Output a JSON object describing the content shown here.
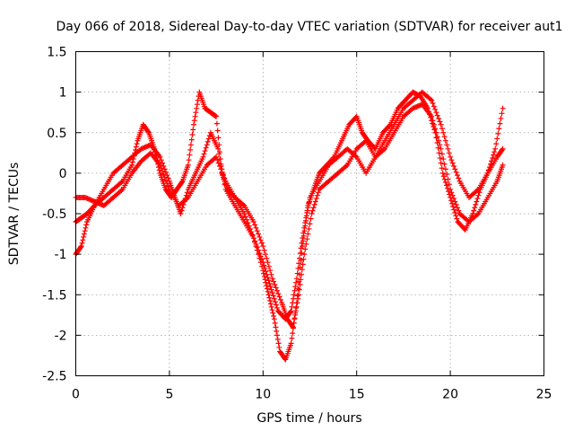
{
  "chart_data": {
    "type": "scatter",
    "title": "Day 066 of 2018, Sidereal Day-to-day VTEC variation (SDTVAR) for receiver aut1",
    "xlabel": "GPS time / hours",
    "ylabel": "SDTVAR / TECUs",
    "xlim": [
      0,
      25
    ],
    "ylim": [
      -2.5,
      1.5
    ],
    "xticks": [
      0,
      5,
      10,
      15,
      20,
      25
    ],
    "yticks": [
      -2.5,
      -2,
      -1.5,
      -1,
      -0.5,
      0,
      0.5,
      1,
      1.5
    ],
    "xtick_labels": [
      "0",
      "5",
      "10",
      "15",
      "20",
      "25"
    ],
    "ytick_labels": [
      "-2.5",
      "-2",
      "-1.5",
      "-1",
      "-0.5",
      "0",
      "0.5",
      "1",
      "1.5"
    ],
    "grid": true,
    "marker": "plus",
    "color": "#ff0000",
    "series": [
      {
        "x": [
          0.0,
          0.3,
          0.6,
          1.0,
          1.5,
          2.0,
          2.5,
          3.0,
          3.3,
          3.6,
          3.9,
          4.2,
          4.5,
          4.8,
          5.1,
          5.4,
          5.7,
          6.0,
          6.3,
          6.6,
          6.9,
          7.2,
          7.5,
          7.8,
          8.1,
          8.5,
          9.0,
          9.5,
          10.0,
          10.3,
          10.6,
          10.9,
          11.2,
          11.5,
          11.8,
          12.1,
          12.4,
          12.7,
          13.0,
          13.4,
          13.8,
          14.2,
          14.6,
          15.0,
          15.3,
          15.6,
          16.0,
          16.4,
          16.8,
          17.2,
          17.6,
          18.0,
          18.4,
          18.8,
          19.2,
          19.6,
          20.0,
          20.4,
          20.8,
          21.2,
          21.6,
          22.0,
          22.4,
          22.8
        ],
        "y": [
          -0.6,
          -0.55,
          -0.5,
          -0.4,
          -0.3,
          -0.2,
          -0.1,
          0.1,
          0.4,
          0.6,
          0.5,
          0.3,
          0.0,
          -0.2,
          -0.3,
          -0.2,
          -0.1,
          0.1,
          0.6,
          1.0,
          0.8,
          0.75,
          0.7,
          0.0,
          -0.2,
          -0.3,
          -0.5,
          -0.8,
          -1.2,
          -1.5,
          -1.8,
          -2.2,
          -2.3,
          -2.1,
          -1.6,
          -0.9,
          -0.4,
          -0.2,
          0.0,
          0.1,
          0.2,
          0.4,
          0.6,
          0.7,
          0.5,
          0.4,
          0.3,
          0.5,
          0.6,
          0.8,
          0.9,
          1.0,
          0.95,
          0.8,
          0.5,
          0.0,
          -0.3,
          -0.6,
          -0.7,
          -0.5,
          -0.2,
          0.0,
          0.3,
          0.8
        ]
      },
      {
        "x": [
          0.0,
          0.3,
          0.6,
          1.0,
          1.5,
          2.0,
          2.5,
          3.0,
          3.5,
          4.0,
          4.5,
          5.0,
          5.3,
          5.6,
          6.0,
          6.4,
          6.8,
          7.2,
          7.6,
          8.0,
          8.5,
          9.0,
          9.5,
          10.0,
          10.4,
          10.8,
          11.2,
          11.5,
          11.8,
          12.1,
          12.5,
          13.0,
          13.5,
          14.0,
          14.5,
          15.0,
          15.5,
          16.0,
          16.5,
          17.0,
          17.5,
          18.0,
          18.5,
          19.0,
          19.5,
          20.0,
          20.5,
          21.0,
          21.5,
          22.0,
          22.5,
          22.8
        ],
        "y": [
          -1.0,
          -0.9,
          -0.6,
          -0.4,
          -0.2,
          0.0,
          0.1,
          0.2,
          0.3,
          0.35,
          0.2,
          -0.1,
          -0.3,
          -0.5,
          -0.2,
          0.0,
          0.2,
          0.5,
          0.3,
          -0.2,
          -0.4,
          -0.6,
          -0.8,
          -1.1,
          -1.4,
          -1.7,
          -1.8,
          -1.7,
          -1.3,
          -0.8,
          -0.3,
          -0.1,
          0.1,
          0.2,
          0.3,
          0.2,
          0.0,
          0.2,
          0.4,
          0.6,
          0.8,
          0.9,
          1.0,
          0.9,
          0.6,
          0.2,
          -0.1,
          -0.3,
          -0.2,
          0.0,
          0.2,
          0.3
        ]
      },
      {
        "x": [
          0.0,
          0.5,
          1.0,
          1.5,
          2.0,
          2.5,
          3.0,
          3.5,
          4.0,
          4.5,
          5.0,
          5.5,
          6.0,
          6.5,
          7.0,
          7.5,
          8.0,
          8.5,
          9.0,
          9.5,
          10.0,
          10.5,
          11.0,
          11.3,
          11.6,
          11.9,
          12.2,
          12.6,
          13.0,
          13.5,
          14.0,
          14.5,
          15.0,
          15.5,
          16.0,
          16.5,
          17.0,
          17.5,
          18.0,
          18.5,
          19.0,
          19.5,
          20.0,
          20.5,
          21.0,
          21.5,
          22.0,
          22.5,
          22.8
        ],
        "y": [
          -0.3,
          -0.3,
          -0.35,
          -0.4,
          -0.3,
          -0.2,
          0.0,
          0.15,
          0.25,
          0.1,
          -0.2,
          -0.4,
          -0.3,
          -0.1,
          0.1,
          0.2,
          -0.1,
          -0.3,
          -0.4,
          -0.6,
          -0.9,
          -1.3,
          -1.6,
          -1.8,
          -1.9,
          -1.5,
          -1.0,
          -0.5,
          -0.2,
          -0.1,
          0.0,
          0.1,
          0.3,
          0.4,
          0.2,
          0.3,
          0.5,
          0.7,
          0.8,
          0.85,
          0.7,
          0.3,
          -0.2,
          -0.5,
          -0.6,
          -0.5,
          -0.3,
          -0.1,
          0.1
        ]
      }
    ]
  }
}
